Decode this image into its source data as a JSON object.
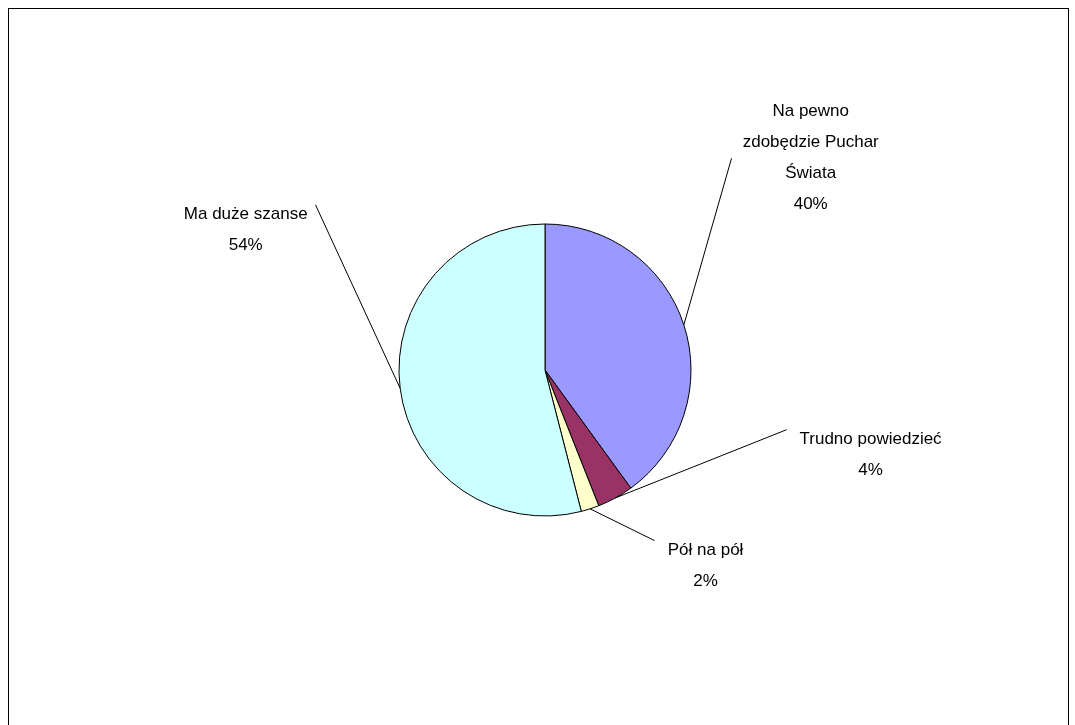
{
  "chart_data": {
    "type": "pie",
    "categories": [
      "Na pewno zdobędzie Puchar Świata",
      "Trudno powiedzieć",
      "Pół na pół",
      "Ma duże szanse"
    ],
    "values": [
      40,
      4,
      2,
      54
    ],
    "value_labels": [
      "40%",
      "4%",
      "2%",
      "54%"
    ],
    "colors": [
      "#9999ff",
      "#993366",
      "#ffffcc",
      "#ccffff"
    ]
  }
}
